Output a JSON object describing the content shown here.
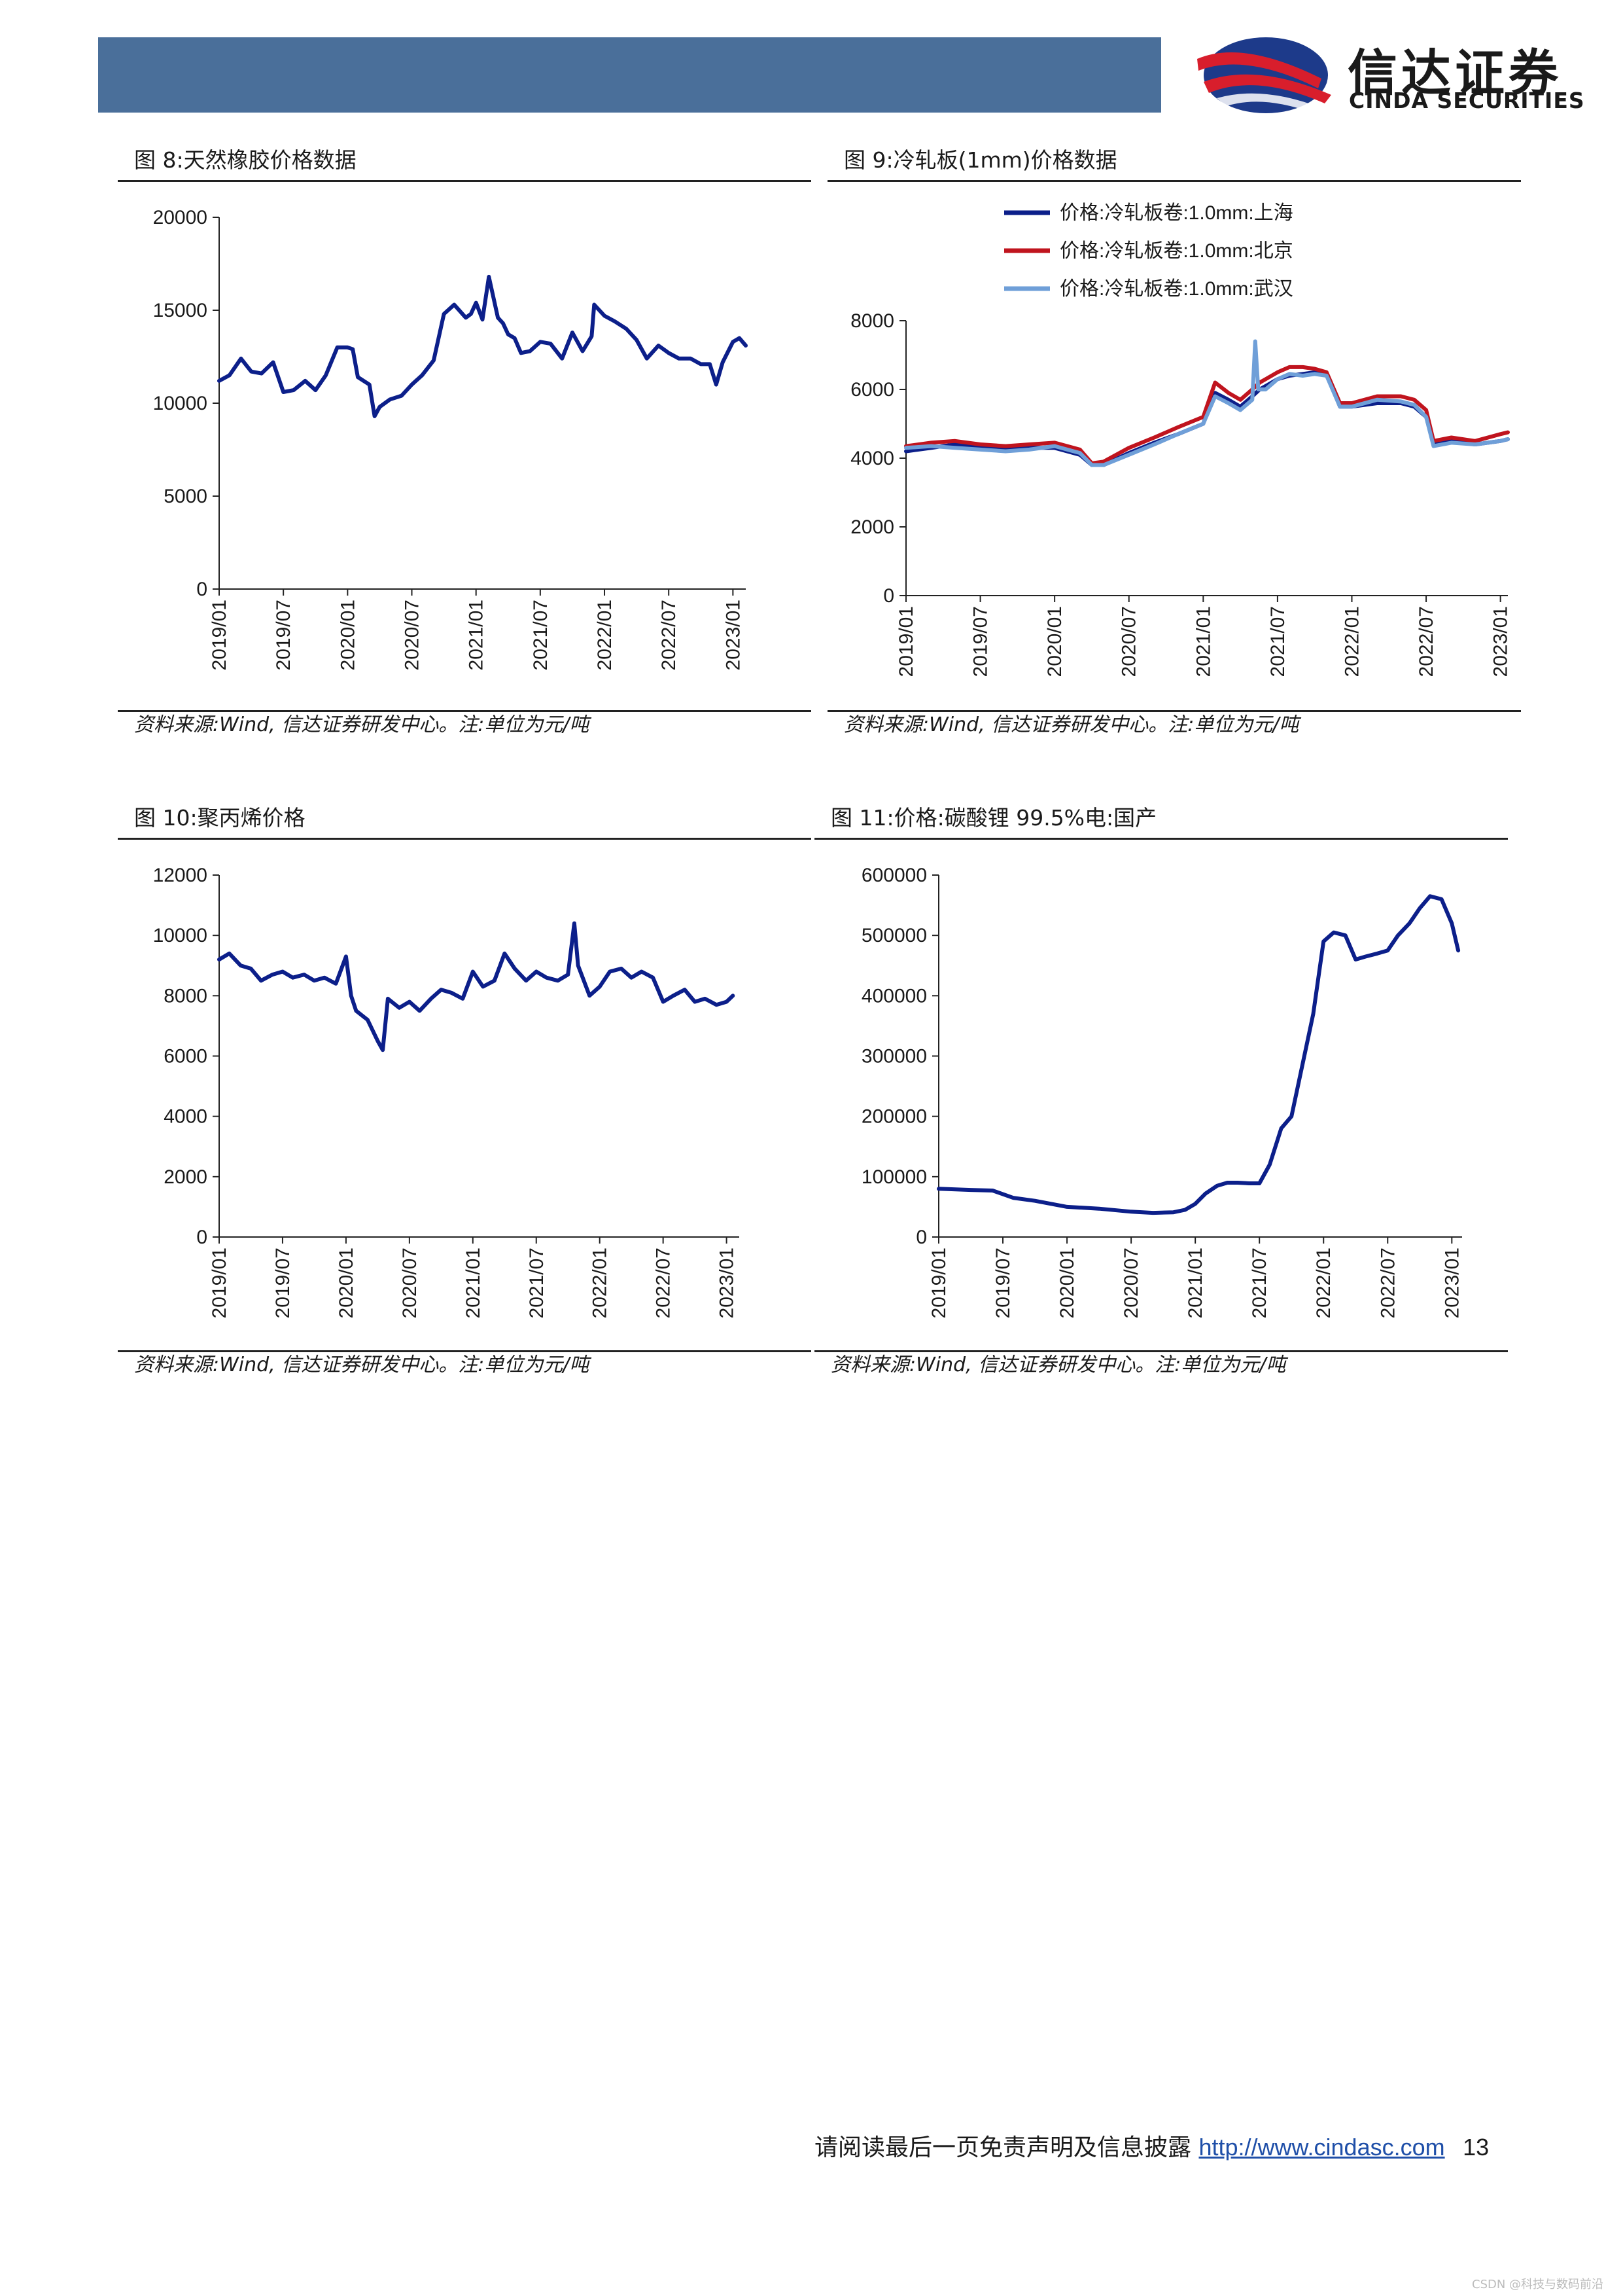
{
  "header": {
    "logo_cn": "信达证券",
    "logo_en": "CINDA SECURITIES",
    "brand_colors": {
      "bar": "#4a6f9a",
      "logo_red": "#d81e2c",
      "logo_blue": "#1d3a8a"
    }
  },
  "figures": [
    {
      "title": "图 8:天然橡胶价格数据",
      "source": "资料来源:Wind, 信达证券研发中心。注:单位为元/吨"
    },
    {
      "title": "图 9:冷轧板(1mm)价格数据",
      "source": "资料来源:Wind, 信达证券研发中心。注:单位为元/吨"
    },
    {
      "title": "图 10:聚丙烯价格",
      "source": "资料来源:Wind, 信达证券研发中心。注:单位为元/吨"
    },
    {
      "title": "图 11:价格:碳酸锂 99.5%电:国产",
      "source": "资料来源:Wind, 信达证券研发中心。注:单位为元/吨"
    }
  ],
  "chart_data": [
    {
      "type": "line",
      "title": "",
      "xlabel": "",
      "ylabel": "",
      "x_ticks": [
        "2019/01",
        "2019/07",
        "2020/01",
        "2020/07",
        "2021/01",
        "2021/07",
        "2022/01",
        "2022/07",
        "2023/01"
      ],
      "x_range": [
        2019.0,
        2023.1
      ],
      "ylim": [
        0,
        20000
      ],
      "y_ticks": [
        0,
        5000,
        10000,
        15000,
        20000
      ],
      "grid": false,
      "legend": "none",
      "series": [
        {
          "color": "#0c1f8a",
          "x": [
            2019.0,
            2019.08,
            2019.17,
            2019.25,
            2019.33,
            2019.42,
            2019.5,
            2019.58,
            2019.67,
            2019.75,
            2019.83,
            2019.92,
            2020.0,
            2020.04,
            2020.08,
            2020.17,
            2020.21,
            2020.25,
            2020.33,
            2020.42,
            2020.5,
            2020.58,
            2020.67,
            2020.75,
            2020.83,
            2020.92,
            2020.96,
            2021.0,
            2021.05,
            2021.1,
            2021.17,
            2021.21,
            2021.25,
            2021.3,
            2021.35,
            2021.42,
            2021.5,
            2021.58,
            2021.67,
            2021.75,
            2021.83,
            2021.9,
            2021.92,
            2022.0,
            2022.08,
            2022.17,
            2022.25,
            2022.33,
            2022.42,
            2022.5,
            2022.58,
            2022.67,
            2022.75,
            2022.82,
            2022.87,
            2022.92,
            2023.0,
            2023.05,
            2023.1
          ],
          "y": [
            11200,
            11500,
            12400,
            11700,
            11600,
            12200,
            10600,
            10700,
            11200,
            10700,
            11500,
            13000,
            13000,
            12900,
            11400,
            11000,
            9300,
            9800,
            10200,
            10400,
            11000,
            11500,
            12300,
            14800,
            15300,
            14600,
            14800,
            15400,
            14500,
            16800,
            14600,
            14300,
            13700,
            13500,
            12700,
            12800,
            13300,
            13200,
            12400,
            13800,
            12800,
            13600,
            15300,
            14700,
            14400,
            14000,
            13400,
            12400,
            13100,
            12700,
            12400,
            12400,
            12100,
            12100,
            11000,
            12200,
            13300,
            13500,
            13100
          ]
        }
      ]
    },
    {
      "type": "line",
      "title": "",
      "xlabel": "",
      "ylabel": "",
      "x_ticks": [
        "2019/01",
        "2019/07",
        "2020/01",
        "2020/07",
        "2021/01",
        "2021/07",
        "2022/01",
        "2022/07",
        "2023/01"
      ],
      "x_range": [
        2019.0,
        2023.05
      ],
      "ylim": [
        0,
        8000
      ],
      "y_ticks": [
        0,
        2000,
        4000,
        6000,
        8000
      ],
      "grid": false,
      "legend": "top-center",
      "series": [
        {
          "name": "价格:冷轧板卷:1.0mm:上海",
          "color": "#0c1f8a",
          "x": [
            2019.0,
            2019.17,
            2019.33,
            2019.5,
            2019.67,
            2019.83,
            2020.0,
            2020.17,
            2020.25,
            2020.33,
            2020.5,
            2020.67,
            2020.83,
            2021.0,
            2021.08,
            2021.17,
            2021.25,
            2021.33,
            2021.38,
            2021.42,
            2021.5,
            2021.58,
            2021.67,
            2021.75,
            2021.83,
            2021.92,
            2022.0,
            2022.17,
            2022.33,
            2022.42,
            2022.5,
            2022.55,
            2022.67,
            2022.83,
            2023.0,
            2023.05
          ],
          "y": [
            4200,
            4300,
            4400,
            4300,
            4250,
            4300,
            4300,
            4100,
            3800,
            3800,
            4150,
            4450,
            4700,
            5000,
            5900,
            5700,
            5500,
            5800,
            6000,
            6100,
            6300,
            6400,
            6450,
            6500,
            6450,
            5500,
            5500,
            5600,
            5600,
            5500,
            5200,
            4400,
            4500,
            4400,
            4500,
            4550
          ]
        },
        {
          "name": "价格:冷轧板卷:1.0mm:北京",
          "color": "#c0141e",
          "x": [
            2019.0,
            2019.17,
            2019.33,
            2019.5,
            2019.67,
            2019.83,
            2020.0,
            2020.17,
            2020.25,
            2020.33,
            2020.5,
            2020.67,
            2020.83,
            2021.0,
            2021.08,
            2021.17,
            2021.25,
            2021.33,
            2021.38,
            2021.42,
            2021.5,
            2021.58,
            2021.67,
            2021.75,
            2021.83,
            2021.92,
            2022.0,
            2022.17,
            2022.33,
            2022.42,
            2022.5,
            2022.55,
            2022.67,
            2022.83,
            2023.0,
            2023.05
          ],
          "y": [
            4350,
            4450,
            4500,
            4400,
            4350,
            4400,
            4450,
            4250,
            3850,
            3900,
            4300,
            4600,
            4900,
            5200,
            6200,
            5900,
            5700,
            6000,
            6200,
            6300,
            6500,
            6650,
            6650,
            6600,
            6500,
            5600,
            5600,
            5800,
            5800,
            5700,
            5400,
            4500,
            4600,
            4500,
            4700,
            4750
          ]
        },
        {
          "name": "价格:冷轧板卷:1.0mm:武汉",
          "color": "#6f9fd8",
          "x": [
            2019.0,
            2019.17,
            2019.33,
            2019.5,
            2019.67,
            2019.83,
            2020.0,
            2020.17,
            2020.25,
            2020.33,
            2020.5,
            2020.67,
            2020.83,
            2021.0,
            2021.08,
            2021.17,
            2021.25,
            2021.33,
            2021.35,
            2021.37,
            2021.42,
            2021.5,
            2021.58,
            2021.67,
            2021.75,
            2021.83,
            2021.92,
            2022.0,
            2022.17,
            2022.33,
            2022.42,
            2022.5,
            2022.55,
            2022.67,
            2022.83,
            2023.0,
            2023.05
          ],
          "y": [
            4300,
            4350,
            4300,
            4250,
            4200,
            4250,
            4350,
            4150,
            3800,
            3800,
            4100,
            4400,
            4700,
            5000,
            5800,
            5600,
            5400,
            5700,
            7400,
            6000,
            6000,
            6300,
            6450,
            6400,
            6450,
            6400,
            5500,
            5500,
            5700,
            5650,
            5550,
            5200,
            4350,
            4450,
            4400,
            4500,
            4550
          ]
        }
      ]
    },
    {
      "type": "line",
      "title": "",
      "xlabel": "",
      "ylabel": "",
      "x_ticks": [
        "2019/01",
        "2019/07",
        "2020/01",
        "2020/07",
        "2021/01",
        "2021/07",
        "2022/01",
        "2022/07",
        "2023/01"
      ],
      "x_range": [
        2019.0,
        2023.1
      ],
      "ylim": [
        0,
        12000
      ],
      "y_ticks": [
        0,
        2000,
        4000,
        6000,
        8000,
        10000,
        12000
      ],
      "grid": false,
      "legend": "none",
      "series": [
        {
          "color": "#0c1f8a",
          "x": [
            2019.0,
            2019.08,
            2019.17,
            2019.25,
            2019.33,
            2019.42,
            2019.5,
            2019.58,
            2019.67,
            2019.75,
            2019.83,
            2019.92,
            2020.0,
            2020.04,
            2020.08,
            2020.17,
            2020.25,
            2020.29,
            2020.33,
            2020.42,
            2020.5,
            2020.58,
            2020.67,
            2020.75,
            2020.83,
            2020.92,
            2021.0,
            2021.08,
            2021.17,
            2021.25,
            2021.33,
            2021.42,
            2021.5,
            2021.58,
            2021.67,
            2021.75,
            2021.8,
            2021.83,
            2021.92,
            2022.0,
            2022.08,
            2022.17,
            2022.25,
            2022.33,
            2022.42,
            2022.5,
            2022.58,
            2022.67,
            2022.75,
            2022.83,
            2022.92,
            2023.0,
            2023.05
          ],
          "y": [
            9200,
            9400,
            9000,
            8900,
            8500,
            8700,
            8800,
            8600,
            8700,
            8500,
            8600,
            8400,
            9300,
            8000,
            7500,
            7200,
            6500,
            6200,
            7900,
            7600,
            7800,
            7500,
            7900,
            8200,
            8100,
            7900,
            8800,
            8300,
            8500,
            9400,
            8900,
            8500,
            8800,
            8600,
            8500,
            8700,
            10400,
            9000,
            8000,
            8300,
            8800,
            8900,
            8600,
            8800,
            8600,
            7800,
            8000,
            8200,
            7800,
            7900,
            7700,
            7800,
            8000
          ]
        }
      ]
    },
    {
      "type": "line",
      "title": "",
      "xlabel": "",
      "ylabel": "",
      "x_ticks": [
        "2019/01",
        "2019/07",
        "2020/01",
        "2020/07",
        "2021/01",
        "2021/07",
        "2022/01",
        "2022/07",
        "2023/01"
      ],
      "x_range": [
        2019.0,
        2023.08
      ],
      "ylim": [
        0,
        600000
      ],
      "y_ticks": [
        0,
        100000,
        200000,
        300000,
        400000,
        500000,
        600000
      ],
      "grid": false,
      "legend": "none",
      "series": [
        {
          "color": "#0c1f8a",
          "x": [
            2019.0,
            2019.25,
            2019.42,
            2019.58,
            2019.75,
            2020.0,
            2020.25,
            2020.5,
            2020.67,
            2020.83,
            2020.92,
            2021.0,
            2021.08,
            2021.17,
            2021.25,
            2021.33,
            2021.42,
            2021.5,
            2021.58,
            2021.67,
            2021.75,
            2021.83,
            2021.92,
            2022.0,
            2022.08,
            2022.17,
            2022.25,
            2022.33,
            2022.42,
            2022.5,
            2022.58,
            2022.67,
            2022.75,
            2022.83,
            2022.92,
            2023.0,
            2023.05
          ],
          "y": [
            80000,
            78000,
            77000,
            65000,
            60000,
            50000,
            47000,
            42000,
            40000,
            41000,
            45000,
            55000,
            72000,
            85000,
            90000,
            90000,
            89000,
            89000,
            120000,
            180000,
            200000,
            280000,
            370000,
            490000,
            505000,
            500000,
            460000,
            465000,
            470000,
            475000,
            500000,
            520000,
            545000,
            565000,
            560000,
            520000,
            475000
          ]
        }
      ]
    }
  ],
  "footer": {
    "notice": "请阅读最后一页免责声明及信息披露",
    "url": "http://www.cindasc.com",
    "page": "13"
  },
  "watermark": "CSDN @科技与数码前沿"
}
